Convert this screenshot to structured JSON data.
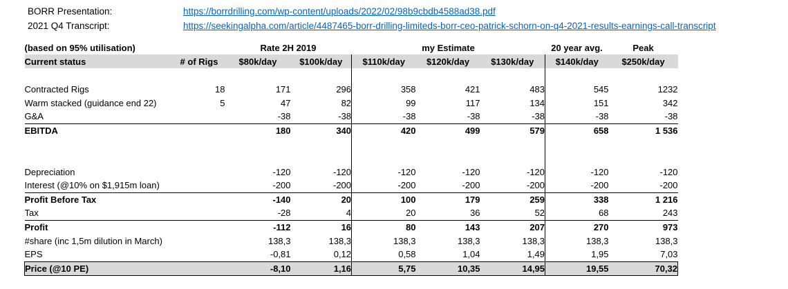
{
  "colors": {
    "link": "#0563c1",
    "header_fill": "#d9d9d9"
  },
  "links": [
    {
      "label": "BORR Presentation:",
      "url": "https://borrdrilling.com/wp-content/uploads/2022/02/98b9cbdb4588ad38.pdf"
    },
    {
      "label": "2021 Q4 Transcript:",
      "url": "https://seekingalpha.com/article/4487465-borr-drilling-limiteds-borr-ceo-patrick-schorn-on-q4-2021-results-earnings-call-transcript"
    }
  ],
  "table": {
    "note": "(based on 95% utilisation)",
    "group_headers": [
      {
        "label": "Rate 2H 2019"
      },
      {
        "label": "my Estimate"
      },
      {
        "label": "20 year avg."
      },
      {
        "label": "Peak"
      }
    ],
    "columns": [
      "Current status",
      "# of Rigs",
      "$80k/day",
      "$100k/day",
      "$110k/day",
      "$120k/day",
      "$130k/day",
      "$140k/day",
      "$250k/day"
    ],
    "rows": [
      {
        "label": "",
        "kind": "spacer",
        "values": [
          "",
          "",
          "",
          "",
          "",
          "",
          "",
          ""
        ]
      },
      {
        "label": "Contracted Rigs",
        "kind": "normal",
        "values": [
          "18",
          "171",
          "296",
          "358",
          "421",
          "483",
          "545",
          "1232"
        ]
      },
      {
        "label": "Warm stacked (guidance end 22)",
        "kind": "normal",
        "values": [
          "5",
          "47",
          "82",
          "99",
          "117",
          "134",
          "151",
          "342"
        ]
      },
      {
        "label": "G&A",
        "kind": "normal",
        "values": [
          "",
          "-38",
          "-38",
          "-38",
          "-38",
          "-38",
          "-38",
          "-38"
        ]
      },
      {
        "label": "EBITDA",
        "kind": "total",
        "values": [
          "",
          "180",
          "340",
          "420",
          "499",
          "579",
          "658",
          "1 536"
        ]
      },
      {
        "label": "",
        "kind": "spacer",
        "values": [
          "",
          "",
          "",
          "",
          "",
          "",
          "",
          ""
        ]
      },
      {
        "label": "",
        "kind": "spacer",
        "values": [
          "",
          "",
          "",
          "",
          "",
          "",
          "",
          ""
        ]
      },
      {
        "label": "Depreciation",
        "kind": "normal",
        "values": [
          "",
          "-120",
          "-120",
          "-120",
          "-120",
          "-120",
          "-120",
          "-120"
        ]
      },
      {
        "label": "Interest (@10% on $1,915m loan)",
        "kind": "normal",
        "values": [
          "",
          "-200",
          "-200",
          "-200",
          "-200",
          "-200",
          "-200",
          "-200"
        ]
      },
      {
        "label": "Profit Before Tax",
        "kind": "total",
        "values": [
          "",
          "-140",
          "20",
          "100",
          "179",
          "259",
          "338",
          "1 216"
        ]
      },
      {
        "label": "Tax",
        "kind": "normal",
        "values": [
          "",
          "-28",
          "4",
          "20",
          "36",
          "52",
          "68",
          "243"
        ]
      },
      {
        "label": "Profit",
        "kind": "total",
        "values": [
          "",
          "-112",
          "16",
          "80",
          "143",
          "207",
          "270",
          "973"
        ]
      },
      {
        "label": "#share (inc 1,5m dilution in March)",
        "kind": "normal",
        "values": [
          "",
          "138,3",
          "138,3",
          "138,3",
          "138,3",
          "138,3",
          "138,3",
          "138,3"
        ]
      },
      {
        "label": "EPS",
        "kind": "normal",
        "values": [
          "",
          "-0,81",
          "0,12",
          "0,58",
          "1,04",
          "1,49",
          "1,95",
          "7,03"
        ]
      },
      {
        "label": "Price (@10 PE)",
        "kind": "highlight",
        "values": [
          "",
          "-8,10",
          "1,16",
          "5,75",
          "10,35",
          "14,95",
          "19,55",
          "70,32"
        ]
      }
    ]
  }
}
